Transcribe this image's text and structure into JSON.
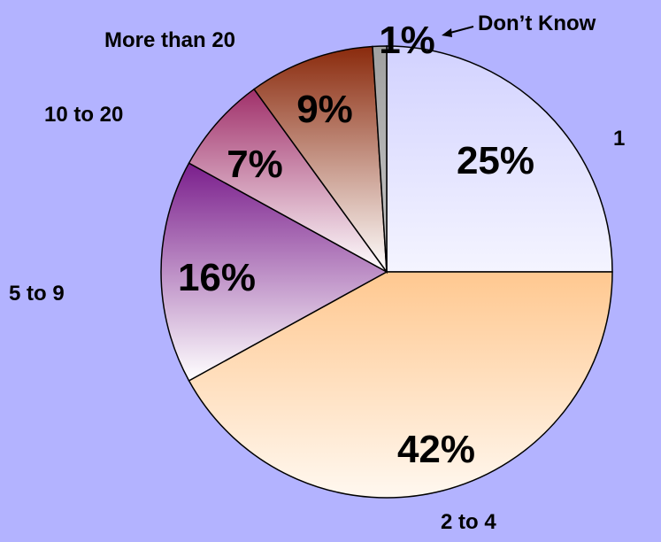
{
  "chart_data": {
    "type": "pie",
    "title": "",
    "slices": [
      {
        "label": "1",
        "value": 25,
        "display": "25%",
        "color_light": "#f4f4ff",
        "color_dark": "#d2d2ff"
      },
      {
        "label": "2 to 4",
        "value": 42,
        "display": "42%",
        "color_light": "#fff8f0",
        "color_dark": "#ffc890"
      },
      {
        "label": "5 to 9",
        "value": 16,
        "display": "16%",
        "color_light": "#ffffff",
        "color_dark": "#7a1e8c"
      },
      {
        "label": "10 to 20",
        "value": 7,
        "display": "7%",
        "color_light": "#ffffff",
        "color_dark": "#a0306a"
      },
      {
        "label": "More than 20",
        "value": 9,
        "display": "9%",
        "color_light": "#ffffff",
        "color_dark": "#8a2a0c"
      },
      {
        "label": "Don’t Know",
        "value": 1,
        "display": "1%",
        "color_light": "#c8c8c8",
        "color_dark": "#a0a0a0"
      }
    ],
    "start_angle_deg": 0,
    "direction": "clockwise",
    "legend": "none",
    "background": "#b3b3ff"
  }
}
